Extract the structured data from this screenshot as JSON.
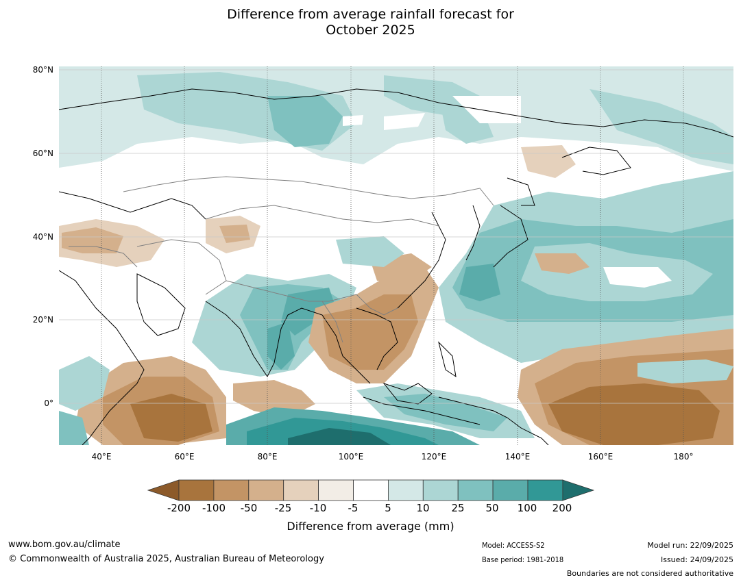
{
  "title_line1": "Difference from average rainfall forecast for",
  "title_line2": "October 2025",
  "map": {
    "lat_labels": [
      "80°N",
      "60°N",
      "40°N",
      "20°N",
      "0°"
    ],
    "lon_labels": [
      "40°E",
      "60°E",
      "80°E",
      "100°E",
      "120°E",
      "140°E",
      "160°E",
      "180°"
    ]
  },
  "legend": {
    "title": "Difference from average (mm)",
    "ticks": [
      "-200",
      "-100",
      "-50",
      "-25",
      "-10",
      "-5",
      "5",
      "10",
      "25",
      "50",
      "100",
      "200"
    ],
    "colors": [
      "#8c5a2a",
      "#a8743d",
      "#c39465",
      "#d4b08c",
      "#e5d1bc",
      "#f2ede6",
      "#ffffff",
      "#d4e8e7",
      "#acd6d4",
      "#7fc1bf",
      "#5aacaa",
      "#319896",
      "#1e6e6d"
    ]
  },
  "footer": {
    "url": "www.bom.gov.au/climate",
    "copyright": "© Commonwealth of Australia 2025, Australian Bureau of Meteorology",
    "model": "Model: ACCESS-S2",
    "base_period": "Base period: 1981-2018",
    "model_run": "Model run: 22/09/2025",
    "issued": "Issued: 24/09/2025",
    "disclaimer": "Boundaries are not considered authoritative"
  }
}
